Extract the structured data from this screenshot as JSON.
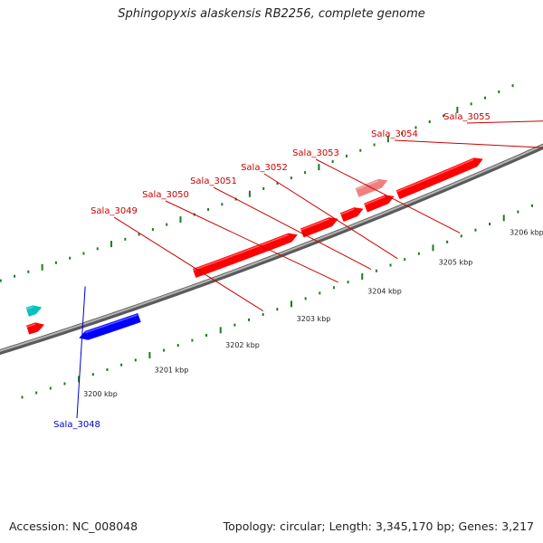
{
  "title": "Sphingopyxis alaskensis RB2256, complete genome",
  "footer": {
    "accession": "Accession: NC_008048",
    "summary": "Topology: circular; Length: 3,345,170 bp; Genes: 3,217"
  },
  "colors": {
    "forward_gene": "#ff0000",
    "forward_gene_light": "#f08080",
    "reverse_gene": "#0000ff",
    "other_gene_purple": "#6a5acd",
    "other_gene_cyan": "#00c0c0",
    "backbone": "#888888",
    "tick": "#1f7a1f",
    "forward_label": "#cc0000",
    "reverse_label": "#0000cc"
  },
  "ruler": [
    {
      "kbp": 3200,
      "label": "3200 kbp"
    },
    {
      "kbp": 3201,
      "label": "3201 kbp"
    },
    {
      "kbp": 3202,
      "label": "3202 kbp"
    },
    {
      "kbp": 3203,
      "label": "3203 kbp"
    },
    {
      "kbp": 3204,
      "label": "3204 kbp"
    },
    {
      "kbp": 3205,
      "label": "3205 kbp"
    },
    {
      "kbp": 3206,
      "label": "3206 kbp"
    }
  ],
  "genes": [
    {
      "id": "cyan-a",
      "label": "",
      "strand": "+",
      "lane": 2,
      "start_kbp": 3199.62,
      "end_kbp": 3199.82,
      "color": "other_gene_cyan"
    },
    {
      "id": "red-a",
      "label": "",
      "strand": "+",
      "lane": 1,
      "start_kbp": 3199.55,
      "end_kbp": 3199.78,
      "color": "forward_gene"
    },
    {
      "id": "Sala_3048",
      "label": "Sala_3048",
      "strand": "-",
      "lane": 1,
      "start_kbp": 3200.18,
      "end_kbp": 3201.03,
      "color": "reverse_gene"
    },
    {
      "id": "Sala_3049",
      "label": "Sala_3049",
      "strand": "+",
      "lane": 1,
      "start_kbp": 3201.93,
      "end_kbp": 3203.4,
      "color": "forward_gene"
    },
    {
      "id": "Sala_3050",
      "label": "Sala_3050",
      "strand": "+",
      "lane": 1,
      "start_kbp": 3203.47,
      "end_kbp": 3203.98,
      "color": "forward_gene"
    },
    {
      "id": "Sala_3051",
      "label": "Sala_3051",
      "strand": "+",
      "lane": 1,
      "start_kbp": 3204.04,
      "end_kbp": 3204.34,
      "color": "forward_gene"
    },
    {
      "id": "sala-3051b",
      "label": "",
      "strand": "+",
      "lane": 1,
      "start_kbp": 3204.38,
      "end_kbp": 3204.78,
      "color": "forward_gene"
    },
    {
      "id": "Sala_3052",
      "label": "Sala_3052",
      "strand": "+",
      "lane": 2,
      "start_kbp": 3204.35,
      "end_kbp": 3204.78,
      "color": "forward_gene_light"
    },
    {
      "id": "Sala_3053",
      "label": "Sala_3053",
      "strand": "+",
      "lane": 1,
      "start_kbp": 3204.84,
      "end_kbp": 3206.05,
      "color": "forward_gene"
    },
    {
      "id": "sala-3054r",
      "label": "",
      "strand": "+",
      "lane": 1,
      "start_kbp": 3207.5,
      "end_kbp": 3208.58,
      "color": "forward_gene"
    },
    {
      "id": "Sala_3054",
      "label": "Sala_3054",
      "strand": "+",
      "lane": 2,
      "start_kbp": 3207.46,
      "end_kbp": 3208.58,
      "color": "other_gene_purple"
    },
    {
      "id": "sala-3055r",
      "label": "",
      "strand": "+",
      "lane": 1,
      "start_kbp": 3208.72,
      "end_kbp": 3209.54,
      "color": "forward_gene"
    },
    {
      "id": "Sala_3055",
      "label": "Sala_3055",
      "strand": "+",
      "lane": 2,
      "start_kbp": 3208.73,
      "end_kbp": 3209.48,
      "color": "other_gene_purple"
    },
    {
      "id": "edge-red",
      "label": "",
      "strand": "+",
      "lane": 1,
      "start_kbp": 3209.68,
      "end_kbp": 3210.2,
      "color": "forward_gene"
    },
    {
      "id": "edge-purple",
      "label": "",
      "strand": "+",
      "lane": 2,
      "start_kbp": 3209.68,
      "end_kbp": 3210.2,
      "color": "other_gene_purple"
    }
  ]
}
